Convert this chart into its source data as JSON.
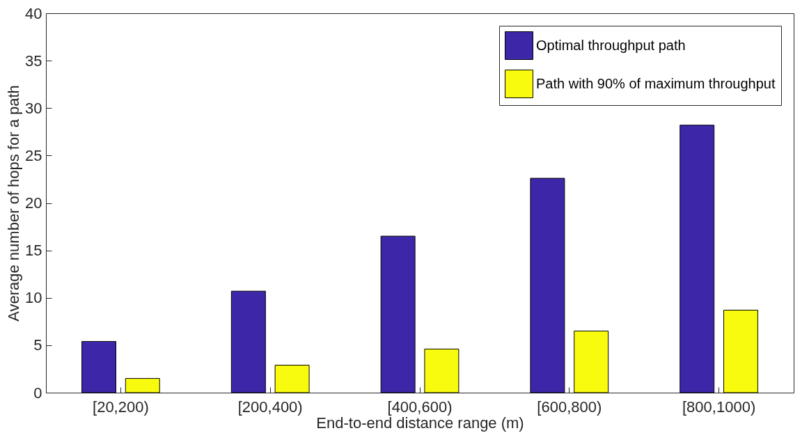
{
  "chart_data": {
    "type": "bar",
    "xlabel": "End-to-end distance range (m)",
    "ylabel": "Average number of hops for a path",
    "categories": [
      "[20,200)",
      "[200,400)",
      "[400,600)",
      "[600,800)",
      "[800,1000)"
    ],
    "series": [
      {
        "name": "Optimal throughput path",
        "color": "#3e26a8",
        "values": [
          5.4,
          10.7,
          16.5,
          22.6,
          28.2
        ]
      },
      {
        "name": "Path with 90% of maximum throughput",
        "color": "#f9fb0e",
        "values": [
          1.5,
          2.9,
          4.6,
          6.5,
          8.7
        ]
      }
    ],
    "ylim": [
      0,
      40
    ],
    "yticks": [
      0,
      5,
      10,
      15,
      20,
      25,
      30,
      35,
      40
    ],
    "grid": false,
    "legend": "top right"
  }
}
